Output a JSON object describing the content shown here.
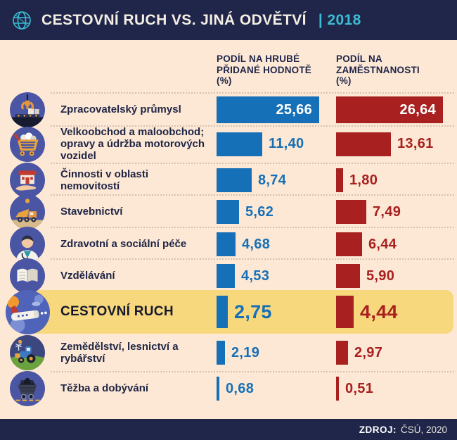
{
  "header": {
    "title": "CESTOVNÍ RUCH VS. JINÁ ODVĚTVÍ",
    "year_tag": "| 2018"
  },
  "columns": {
    "gva_title": "PODÍL NA HRUBÉ\nPŘIDANÉ HODNOTĚ\n(%)",
    "emp_title": "PODÍL NA\nZAMĚSTNANOSTI\n(%)"
  },
  "rows": [
    {
      "label": "Zpracovatelský průmysl",
      "icon": "manufacturing-icon",
      "gva_value": 25.66,
      "gva_label": "25,66",
      "emp_value": 26.64,
      "emp_label": "26,64",
      "highlight": false
    },
    {
      "label": "Velkoobchod a maloobchod; opravy a údržba motorových vozidel",
      "icon": "retail-cart-icon",
      "gva_value": 11.4,
      "gva_label": "11,40",
      "emp_value": 13.61,
      "emp_label": "13,61",
      "highlight": false
    },
    {
      "label": "Činnosti v oblasti nemovitostí",
      "icon": "real-estate-icon",
      "gva_value": 8.74,
      "gva_label": "8,74",
      "emp_value": 1.8,
      "emp_label": "1,80",
      "highlight": false
    },
    {
      "label": "Stavebnictví",
      "icon": "construction-truck-icon",
      "gva_value": 5.62,
      "gva_label": "5,62",
      "emp_value": 7.49,
      "emp_label": "7,49",
      "highlight": false
    },
    {
      "label": "Zdravotní a sociální péče",
      "icon": "healthcare-icon",
      "gva_value": 4.68,
      "gva_label": "4,68",
      "emp_value": 6.44,
      "emp_label": "6,44",
      "highlight": false
    },
    {
      "label": "Vzdělávání",
      "icon": "education-book-icon",
      "gva_value": 4.53,
      "gva_label": "4,53",
      "emp_value": 5.9,
      "emp_label": "5,90",
      "highlight": false
    },
    {
      "label": "CESTOVNÍ RUCH",
      "icon": "tourism-plane-icon",
      "gva_value": 2.75,
      "gva_label": "2,75",
      "emp_value": 4.44,
      "emp_label": "4,44",
      "highlight": true
    },
    {
      "label": "Zemědělství, lesnictví a rybářství",
      "icon": "agriculture-tractor-icon",
      "gva_value": 2.19,
      "gva_label": "2,19",
      "emp_value": 2.97,
      "emp_label": "2,97",
      "highlight": false
    },
    {
      "label": "Těžba a dobývání",
      "icon": "mining-cart-icon",
      "gva_value": 0.68,
      "gva_label": "0,68",
      "emp_value": 0.51,
      "emp_label": "0,51",
      "highlight": false
    }
  ],
  "chart_data": {
    "type": "bar",
    "orientation": "horizontal",
    "title": "Cestovní ruch vs. jiná odvětví | 2018",
    "categories": [
      "Zpracovatelský průmysl",
      "Velkoobchod a maloobchod; opravy a údržba motorových vozidel",
      "Činnosti v oblasti nemovitostí",
      "Stavebnictví",
      "Zdravotní a sociální péče",
      "Vzdělávání",
      "Cestovní ruch",
      "Zemědělství, lesnictví a rybářství",
      "Těžba a dobývání"
    ],
    "series": [
      {
        "name": "Podíl na hrubé přidané hodnotě (%)",
        "color": "#1670b8",
        "values": [
          25.66,
          11.4,
          8.74,
          5.62,
          4.68,
          4.53,
          2.75,
          2.19,
          0.68
        ]
      },
      {
        "name": "Podíl na zaměstnanosti (%)",
        "color": "#a8201f",
        "values": [
          26.64,
          13.61,
          1.8,
          7.49,
          6.44,
          5.9,
          4.44,
          2.97,
          0.51
        ]
      }
    ],
    "highlighted_category": "Cestovní ruch",
    "xlim": [
      0,
      27
    ],
    "value_format": "czech-decimal-comma",
    "grid": false,
    "legend_position": "column-headers"
  },
  "footer": {
    "source_label": "ZDROJ:",
    "source_value": "ČSÚ, 2020"
  },
  "colors": {
    "navy": "#20264a",
    "teal": "#3bbcd4",
    "cream": "#fce8d4",
    "bar_blue": "#1670b8",
    "bar_red": "#a8201f",
    "highlight_yellow": "#f8d87d",
    "icon_circle": "#4a55a4"
  }
}
